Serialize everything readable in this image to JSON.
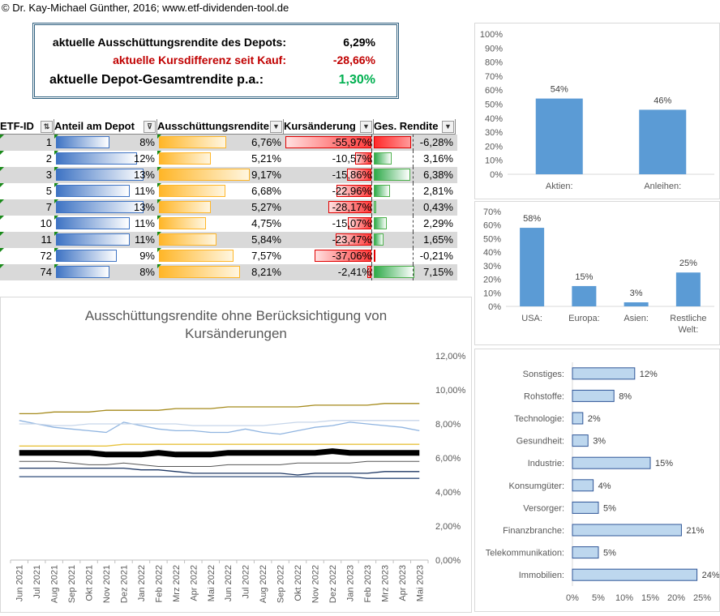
{
  "copyright": "© Dr. Kay-Michael Günther, 2016; www.etf-dividenden-tool.de",
  "summary": {
    "row1_label": "aktuelle Ausschüttungsrendite des Depots:",
    "row1_value": "6,29%",
    "row2_label": "aktuelle Kursdifferenz seit Kauf:",
    "row2_value": "-28,66%",
    "row3_label": "aktuelle Depot-Gesamtrendite p.a.:",
    "row3_value": "1,30%"
  },
  "colors": {
    "red": "#c00000",
    "green": "#00b050",
    "bar_blue": "#5b9bd5",
    "gold": "#a58a1b",
    "black": "#000000"
  },
  "table": {
    "headers": [
      "ETF-ID",
      "Anteil am Depot",
      "Ausschüttungsrendite",
      "Kursänderung",
      "Ges. Rendite"
    ],
    "rows": [
      {
        "id": "1",
        "anteil": "8%",
        "anteil_v": 8,
        "aus": "6,76%",
        "aus_v": 6.76,
        "kurs": "-55,97%",
        "kurs_v": -55.97,
        "ges": "-6,28%",
        "ges_v": -6.28
      },
      {
        "id": "2",
        "anteil": "12%",
        "anteil_v": 12,
        "aus": "5,21%",
        "aus_v": 5.21,
        "kurs": "-10,57%",
        "kurs_v": -10.57,
        "ges": "3,16%",
        "ges_v": 3.16
      },
      {
        "id": "3",
        "anteil": "13%",
        "anteil_v": 13,
        "aus": "9,17%",
        "aus_v": 9.17,
        "kurs": "-15,86%",
        "kurs_v": -15.86,
        "ges": "6,38%",
        "ges_v": 6.38
      },
      {
        "id": "5",
        "anteil": "11%",
        "anteil_v": 11,
        "aus": "6,68%",
        "aus_v": 6.68,
        "kurs": "-22,96%",
        "kurs_v": -22.96,
        "ges": "2,81%",
        "ges_v": 2.81
      },
      {
        "id": "7",
        "anteil": "13%",
        "anteil_v": 13,
        "aus": "5,27%",
        "aus_v": 5.27,
        "kurs": "-28,17%",
        "kurs_v": -28.17,
        "ges": "0,43%",
        "ges_v": 0.43
      },
      {
        "id": "10",
        "anteil": "11%",
        "anteil_v": 11,
        "aus": "4,75%",
        "aus_v": 4.75,
        "kurs": "-15,07%",
        "kurs_v": -15.07,
        "ges": "2,29%",
        "ges_v": 2.29
      },
      {
        "id": "11",
        "anteil": "11%",
        "anteil_v": 11,
        "aus": "5,84%",
        "aus_v": 5.84,
        "kurs": "-23,47%",
        "kurs_v": -23.47,
        "ges": "1,65%",
        "ges_v": 1.65
      },
      {
        "id": "72",
        "anteil": "9%",
        "anteil_v": 9,
        "aus": "7,57%",
        "aus_v": 7.57,
        "kurs": "-37,06%",
        "kurs_v": -37.06,
        "ges": "-0,21%",
        "ges_v": -0.21
      },
      {
        "id": "74",
        "anteil": "8%",
        "anteil_v": 8,
        "aus": "8,21%",
        "aus_v": 8.21,
        "kurs": "-2,41%",
        "kurs_v": -2.41,
        "ges": "7,15%",
        "ges_v": 7.15
      }
    ]
  },
  "chart_data": [
    {
      "type": "bar",
      "categories": [
        "Aktien:",
        "Anleihen:"
      ],
      "values": [
        54,
        46
      ],
      "labels": [
        "54%",
        "46%"
      ],
      "ylim": [
        0,
        100
      ],
      "yticks": [
        "0%",
        "10%",
        "20%",
        "30%",
        "40%",
        "50%",
        "60%",
        "70%",
        "80%",
        "90%",
        "100%"
      ]
    },
    {
      "type": "bar",
      "categories": [
        "USA:",
        "Europa:",
        "Asien:",
        "Restliche Welt:"
      ],
      "values": [
        58,
        15,
        3,
        25
      ],
      "labels": [
        "58%",
        "15%",
        "3%",
        "25%"
      ],
      "ylim": [
        0,
        70
      ],
      "yticks": [
        "0%",
        "10%",
        "20%",
        "30%",
        "40%",
        "50%",
        "60%",
        "70%"
      ]
    },
    {
      "type": "bar",
      "orientation": "horizontal",
      "categories": [
        "Sonstiges:",
        "Rohstoffe:",
        "Technologie:",
        "Gesundheit:",
        "Industrie:",
        "Konsumgüter:",
        "Versorger:",
        "Finanzbranche:",
        "Telekommunikation:",
        "Immobilien:"
      ],
      "values": [
        12,
        8,
        2,
        3,
        15,
        4,
        5,
        21,
        5,
        24
      ],
      "labels": [
        "12%",
        "8%",
        "2%",
        "3%",
        "15%",
        "4%",
        "5%",
        "21%",
        "5%",
        "24%"
      ],
      "xlim": [
        0,
        25
      ],
      "xticks": [
        "0%",
        "5%",
        "10%",
        "15%",
        "20%",
        "25%"
      ]
    },
    {
      "type": "line",
      "title": "Ausschüttungsrendite ohne Berücksichtigung von Kursänderungen",
      "x": [
        "Jun 2021",
        "Jul 2021",
        "Aug 2021",
        "Sep 2021",
        "Okt 2021",
        "Nov 2021",
        "Dez 2021",
        "Jan 2022",
        "Feb 2022",
        "Mrz 2022",
        "Apr 2022",
        "Mai 2022",
        "Jun 2022",
        "Jul 2022",
        "Aug 2022",
        "Sep 2022",
        "Okt 2022",
        "Nov 2022",
        "Dez 2022",
        "Jan 2023",
        "Feb 2023",
        "Mrz 2023",
        "Apr 2023",
        "Mai 2023"
      ],
      "ylim": [
        0,
        12
      ],
      "yticks": [
        "0,00%",
        "2,00%",
        "4,00%",
        "6,00%",
        "8,00%",
        "10,00%",
        "12,00%"
      ],
      "series": [
        {
          "color": "#a58a1b",
          "width": 1.3,
          "values": [
            8.6,
            8.6,
            8.7,
            8.7,
            8.7,
            8.8,
            8.8,
            8.8,
            8.8,
            8.9,
            8.9,
            8.9,
            9.0,
            9.0,
            9.0,
            9.0,
            9.0,
            9.1,
            9.1,
            9.1,
            9.1,
            9.2,
            9.2,
            9.2
          ]
        },
        {
          "color": "#8fb4e0",
          "width": 1.3,
          "values": [
            8.2,
            8.0,
            7.8,
            7.7,
            7.6,
            7.5,
            8.1,
            7.9,
            7.7,
            7.6,
            7.6,
            7.5,
            7.5,
            7.7,
            7.5,
            7.4,
            7.6,
            7.8,
            7.9,
            8.1,
            8.0,
            7.9,
            7.8,
            7.6
          ]
        },
        {
          "color": "#c7d6ea",
          "width": 1.3,
          "values": [
            8.0,
            8.0,
            7.9,
            7.9,
            8.0,
            8.0,
            8.0,
            8.0,
            8.0,
            8.0,
            7.9,
            7.9,
            7.9,
            7.9,
            7.9,
            8.0,
            8.1,
            8.1,
            8.2,
            8.2,
            8.2,
            8.2,
            8.2,
            8.2
          ]
        },
        {
          "color": "#e8c33e",
          "width": 1.3,
          "values": [
            6.7,
            6.7,
            6.7,
            6.7,
            6.7,
            6.7,
            6.8,
            6.8,
            6.8,
            6.8,
            6.8,
            6.8,
            6.8,
            6.8,
            6.8,
            6.8,
            6.8,
            6.8,
            6.8,
            6.8,
            6.8,
            6.8,
            6.8,
            6.8
          ]
        },
        {
          "color": "#000000",
          "width": 7,
          "values": [
            6.3,
            6.3,
            6.3,
            6.3,
            6.3,
            6.2,
            6.2,
            6.2,
            6.3,
            6.2,
            6.2,
            6.2,
            6.3,
            6.3,
            6.3,
            6.3,
            6.3,
            6.3,
            6.4,
            6.3,
            6.3,
            6.3,
            6.3,
            6.3
          ]
        },
        {
          "color": "#555555",
          "width": 1,
          "values": [
            5.8,
            5.8,
            5.8,
            5.7,
            5.6,
            5.6,
            5.7,
            5.6,
            5.5,
            5.5,
            5.5,
            5.5,
            5.6,
            5.6,
            5.6,
            5.6,
            5.7,
            5.7,
            5.7,
            5.7,
            5.8,
            5.8,
            5.8,
            5.8
          ]
        },
        {
          "color": "#1f3864",
          "width": 1.3,
          "values": [
            5.4,
            5.4,
            5.4,
            5.4,
            5.4,
            5.4,
            5.4,
            5.3,
            5.3,
            5.2,
            5.1,
            5.1,
            5.1,
            5.1,
            5.1,
            5.1,
            5.0,
            5.1,
            5.1,
            5.1,
            5.1,
            5.2,
            5.2,
            5.2
          ]
        },
        {
          "color": "#2e4b7a",
          "width": 1.3,
          "values": [
            4.9,
            4.9,
            4.9,
            4.9,
            4.9,
            4.9,
            4.9,
            4.9,
            4.9,
            4.9,
            4.9,
            4.9,
            4.9,
            4.9,
            4.9,
            4.9,
            4.9,
            4.9,
            4.9,
            4.9,
            4.8,
            4.8,
            4.8,
            4.8
          ]
        }
      ]
    }
  ]
}
